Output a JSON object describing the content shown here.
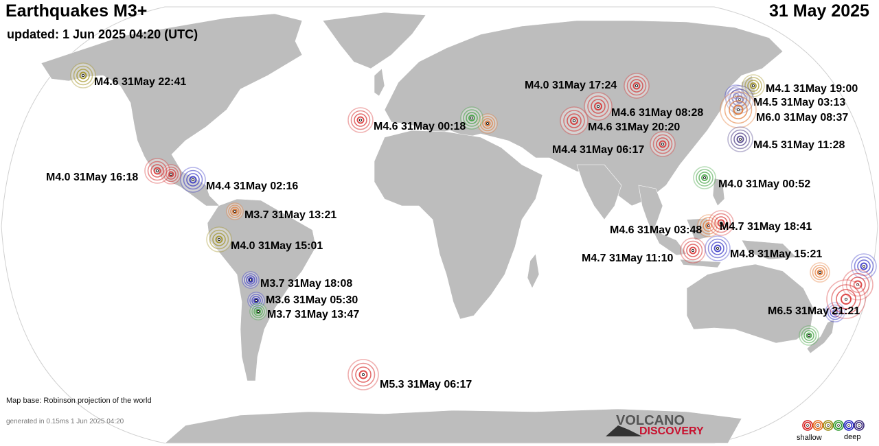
{
  "header": {
    "title": "Earthquakes M3+",
    "updated": "updated:  1 Jun 2025 04:20 (UTC)",
    "date": "31 May 2025"
  },
  "footer": {
    "map_base": "Map base: Robinson projection of the world",
    "generated": "generated in 0.15ms  1 Jun 2025 04:20",
    "logo_top": "VOLCANO",
    "logo_bottom": "DISCOVERY"
  },
  "legend": {
    "shallow_label": "shallow",
    "deep_label": "deep",
    "colors": [
      "#d42020",
      "#e26b1e",
      "#9a8a10",
      "#2e9a2e",
      "#2222c0",
      "#3a2a7a"
    ]
  },
  "colors": {
    "ocean": "#ffffff",
    "land": "#bdbdbd",
    "border": "#ffffff"
  },
  "earthquakes": [
    {
      "label": "M4.6 31May 22:41",
      "depth_class": "yellow"
    },
    {
      "label": "M4.0 31May 16:18",
      "depth_class": "red"
    },
    {
      "label": "M4.4 31May 02:16",
      "depth_class": "blue"
    },
    {
      "label": "M3.7 31May 13:21",
      "depth_class": "orange"
    },
    {
      "label": "M4.0 31May 15:01",
      "depth_class": "yellow"
    },
    {
      "label": "M3.7 31May 18:08",
      "depth_class": "blue"
    },
    {
      "label": "M3.6 31May 05:30",
      "depth_class": "blue"
    },
    {
      "label": "M3.7 31May 13:47",
      "depth_class": "green"
    },
    {
      "label": "M5.3 31May 06:17",
      "depth_class": "red"
    },
    {
      "label": "M4.6 31May 00:18",
      "depth_class": "red"
    },
    {
      "label": "M4.0 31May 17:24",
      "depth_class": "red"
    },
    {
      "label": "M4.6 31May 08:28",
      "depth_class": "red"
    },
    {
      "label": "M4.6 31May 20:20",
      "depth_class": "red"
    },
    {
      "label": "M4.4 31May 06:17",
      "depth_class": "red"
    },
    {
      "label": "M4.1 31May 19:00",
      "depth_class": "yellow"
    },
    {
      "label": "M4.5 31May 03:13",
      "depth_class": "purple"
    },
    {
      "label": "M6.0 31May 08:37",
      "depth_class": "orange"
    },
    {
      "label": "M4.5 31May 11:28",
      "depth_class": "purple"
    },
    {
      "label": "M4.0 31May 00:52",
      "depth_class": "green"
    },
    {
      "label": "M4.6 31May 03:48",
      "depth_class": "orange"
    },
    {
      "label": "M4.7 31May 18:41",
      "depth_class": "red"
    },
    {
      "label": "M4.7 31May 11:10",
      "depth_class": "red"
    },
    {
      "label": "M4.8 31May 15:21",
      "depth_class": "blue"
    },
    {
      "label": "M6.5 31May 21:21",
      "depth_class": "red"
    }
  ]
}
